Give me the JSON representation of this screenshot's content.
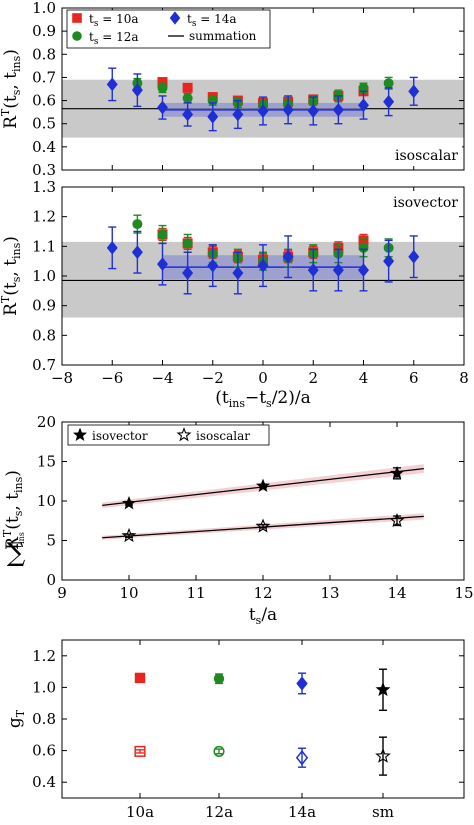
{
  "chart_data": [
    {
      "panel": "a",
      "type": "scatter",
      "xlim": [
        -8,
        8
      ],
      "ylim": [
        0.3,
        1.0
      ],
      "x_ticks": [
        "",
        "",
        "",
        "",
        "",
        "",
        "",
        "",
        ""
      ],
      "y_ticks": [
        "0.3",
        "0.4",
        "0.5",
        "0.6",
        "0.7",
        "0.8",
        "0.9",
        "1.0"
      ],
      "ylabel_main": "R",
      "ylabel_sup": "T",
      "ylabel_args": "(t",
      "ylabel_args2": ", t",
      "ylabel_args3": ")",
      "ylabel_sub_s": "s",
      "ylabel_sub_ins": "ins",
      "annotation": "isoscalar",
      "legend": [
        {
          "label_pre": "t",
          "label_sub": "s",
          "label_post": " = 10a"
        },
        {
          "label_pre": "t",
          "label_sub": "s",
          "label_post": " = 12a"
        },
        {
          "label_pre": "t",
          "label_sub": "s",
          "label_post": " = 14a"
        },
        {
          "label_pre": "",
          "label_sub": "",
          "label_post": "summation"
        }
      ],
      "summation": {
        "value": 0.565,
        "band": [
          0.44,
          0.69
        ]
      },
      "fit": {
        "x_range": [
          -4,
          4
        ],
        "value": 0.56,
        "band": [
          0.53,
          0.59
        ]
      },
      "series": [
        {
          "ts": 10,
          "color": "#e8251f",
          "marker": "square",
          "points": [
            [
              -4,
              0.68,
              0.01
            ],
            [
              -3,
              0.655,
              0.01
            ],
            [
              -2,
              0.615,
              0.01
            ],
            [
              -1,
              0.6,
              0.01
            ],
            [
              0,
              0.59,
              0.01
            ],
            [
              1,
              0.595,
              0.01
            ],
            [
              2,
              0.605,
              0.01
            ],
            [
              3,
              0.62,
              0.01
            ],
            [
              4,
              0.64,
              0.015
            ]
          ]
        },
        {
          "ts": 12,
          "color": "#1f8a1f",
          "marker": "circle",
          "points": [
            [
              -5,
              0.675,
              0.02
            ],
            [
              -4,
              0.655,
              0.02
            ],
            [
              -3,
              0.61,
              0.02
            ],
            [
              -2,
              0.6,
              0.02
            ],
            [
              -1,
              0.59,
              0.02
            ],
            [
              0,
              0.58,
              0.02
            ],
            [
              1,
              0.585,
              0.02
            ],
            [
              2,
              0.6,
              0.02
            ],
            [
              3,
              0.62,
              0.025
            ],
            [
              4,
              0.655,
              0.02
            ],
            [
              5,
              0.675,
              0.025
            ]
          ]
        },
        {
          "ts": 14,
          "color": "#1e2fd6",
          "marker": "diamond",
          "points": [
            [
              -6,
              0.67,
              0.07
            ],
            [
              -5,
              0.645,
              0.07
            ],
            [
              -4,
              0.57,
              0.05
            ],
            [
              -3,
              0.54,
              0.05
            ],
            [
              -2,
              0.53,
              0.06
            ],
            [
              -1,
              0.54,
              0.06
            ],
            [
              0,
              0.555,
              0.06
            ],
            [
              1,
              0.56,
              0.06
            ],
            [
              2,
              0.555,
              0.06
            ],
            [
              3,
              0.56,
              0.06
            ],
            [
              4,
              0.58,
              0.06
            ],
            [
              5,
              0.595,
              0.06
            ],
            [
              6,
              0.64,
              0.06
            ]
          ]
        }
      ]
    },
    {
      "panel": "b",
      "type": "scatter",
      "xlim": [
        -8,
        8
      ],
      "ylim": [
        0.7,
        1.3
      ],
      "x_ticks": [
        "−8",
        "−6",
        "−4",
        "−2",
        "0",
        "2",
        "4",
        "6",
        "8"
      ],
      "y_ticks": [
        "0.7",
        "0.8",
        "0.9",
        "1.0",
        "1.1",
        "1.2",
        "1.3"
      ],
      "xlabel_pre": "(t",
      "xlabel_sub1": "ins",
      "xlabel_mid": "−t",
      "xlabel_sub2": "s",
      "xlabel_post": "/2)/a",
      "ylabel_main": "R",
      "ylabel_sup": "T",
      "annotation": "isovector",
      "summation": {
        "value": 0.985,
        "band": [
          0.86,
          1.115
        ]
      },
      "fit": {
        "x_range": [
          -4,
          4
        ],
        "value": 1.03,
        "band": [
          0.99,
          1.07
        ]
      },
      "series": [
        {
          "ts": 10,
          "color": "#e8251f",
          "marker": "square",
          "points": [
            [
              -4,
              1.14,
              0.02
            ],
            [
              -3,
              1.11,
              0.02
            ],
            [
              -2,
              1.08,
              0.02
            ],
            [
              -1,
              1.065,
              0.02
            ],
            [
              0,
              1.055,
              0.02
            ],
            [
              1,
              1.065,
              0.02
            ],
            [
              2,
              1.08,
              0.02
            ],
            [
              3,
              1.095,
              0.02
            ],
            [
              4,
              1.12,
              0.02
            ]
          ]
        },
        {
          "ts": 12,
          "color": "#1f8a1f",
          "marker": "circle",
          "points": [
            [
              -5,
              1.175,
              0.03
            ],
            [
              -4,
              1.14,
              0.03
            ],
            [
              -3,
              1.11,
              0.03
            ],
            [
              -2,
              1.075,
              0.03
            ],
            [
              -1,
              1.06,
              0.03
            ],
            [
              0,
              1.05,
              0.03
            ],
            [
              1,
              1.06,
              0.03
            ],
            [
              2,
              1.075,
              0.03
            ],
            [
              3,
              1.075,
              0.03
            ],
            [
              4,
              1.095,
              0.03
            ],
            [
              5,
              1.095,
              0.03
            ]
          ]
        },
        {
          "ts": 14,
          "color": "#1e2fd6",
          "marker": "diamond",
          "points": [
            [
              -6,
              1.095,
              0.07
            ],
            [
              -5,
              1.08,
              0.07
            ],
            [
              -4,
              1.04,
              0.07
            ],
            [
              -3,
              1.01,
              0.07
            ],
            [
              -2,
              1.035,
              0.07
            ],
            [
              -1,
              1.01,
              0.07
            ],
            [
              0,
              1.035,
              0.07
            ],
            [
              1,
              1.065,
              0.07
            ],
            [
              2,
              1.02,
              0.07
            ],
            [
              3,
              1.02,
              0.07
            ],
            [
              4,
              1.02,
              0.07
            ],
            [
              5,
              1.05,
              0.07
            ],
            [
              6,
              1.065,
              0.07
            ]
          ]
        }
      ]
    },
    {
      "panel": "c",
      "type": "scatter",
      "xlim": [
        9,
        15
      ],
      "ylim": [
        0,
        20
      ],
      "x_ticks": [
        "9",
        "10",
        "11",
        "12",
        "13",
        "14",
        "15"
      ],
      "y_ticks": [
        "0",
        "5",
        "10",
        "15",
        "20"
      ],
      "xlabel_pre": "t",
      "xlabel_sub": "s",
      "xlabel_post": "/a",
      "ylabel_sum": "∑",
      "ylabel_sum_sub": "t",
      "ylabel_sum_sub2": "ins",
      "ylabel_main": "R",
      "ylabel_sup": "T",
      "legend": [
        {
          "label": "isovector",
          "marker": "filled-star"
        },
        {
          "label": "isoscalar",
          "marker": "open-star"
        }
      ],
      "fits": [
        {
          "name": "isovector",
          "x": [
            9.6,
            14.4
          ],
          "y": [
            9.45,
            14.1
          ],
          "band": 0.35
        },
        {
          "name": "isoscalar",
          "x": [
            9.6,
            14.4
          ],
          "y": [
            5.35,
            8.05
          ],
          "band": 0.25
        }
      ],
      "series": [
        {
          "name": "isovector",
          "marker": "filled-star",
          "points": [
            [
              10,
              9.7,
              0.2
            ],
            [
              12,
              11.9,
              0.2
            ],
            [
              14,
              13.5,
              0.7
            ]
          ]
        },
        {
          "name": "isoscalar",
          "marker": "open-star",
          "points": [
            [
              10,
              5.6,
              0.2
            ],
            [
              12,
              6.8,
              0.2
            ],
            [
              14,
              7.5,
              0.6
            ]
          ]
        }
      ]
    },
    {
      "panel": "d",
      "type": "scatter",
      "categories": [
        "10a",
        "12a",
        "14a",
        "sm"
      ],
      "ylim": [
        0.3,
        1.3
      ],
      "y_ticks": [
        "0.4",
        "0.6",
        "0.8",
        "1.0",
        "1.2"
      ],
      "ylabel_main": "g",
      "ylabel_sub": "T",
      "series": [
        {
          "name": "isovector",
          "points": [
            {
              "cat": 0,
              "value": 1.06,
              "err": 0.01,
              "marker": "square",
              "fill": true,
              "color": "#e8251f"
            },
            {
              "cat": 1,
              "value": 1.055,
              "err": 0.03,
              "marker": "circle",
              "fill": true,
              "color": "#1f8a1f"
            },
            {
              "cat": 2,
              "value": 1.025,
              "err": 0.065,
              "marker": "diamond",
              "fill": true,
              "color": "#1e2fd6"
            },
            {
              "cat": 3,
              "value": 0.985,
              "err": 0.13,
              "marker": "star",
              "fill": true,
              "color": "#000000"
            }
          ]
        },
        {
          "name": "isoscalar",
          "points": [
            {
              "cat": 0,
              "value": 0.595,
              "err": 0.01,
              "marker": "square",
              "fill": false,
              "color": "#e8251f"
            },
            {
              "cat": 1,
              "value": 0.595,
              "err": 0.015,
              "marker": "circle",
              "fill": false,
              "color": "#1f8a1f"
            },
            {
              "cat": 2,
              "value": 0.555,
              "err": 0.06,
              "marker": "diamond",
              "fill": false,
              "color": "#1e2fd6"
            },
            {
              "cat": 3,
              "value": 0.565,
              "err": 0.12,
              "marker": "star",
              "fill": false,
              "color": "#000000"
            }
          ]
        }
      ]
    }
  ]
}
